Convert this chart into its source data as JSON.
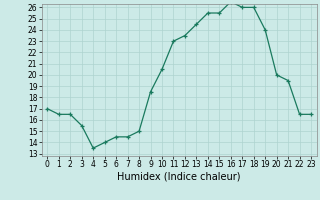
{
  "x": [
    0,
    1,
    2,
    3,
    4,
    5,
    6,
    7,
    8,
    9,
    10,
    11,
    12,
    13,
    14,
    15,
    16,
    17,
    18,
    19,
    20,
    21,
    22,
    23
  ],
  "y": [
    17,
    16.5,
    16.5,
    15.5,
    13.5,
    14,
    14.5,
    14.5,
    15,
    18.5,
    20.5,
    23,
    23.5,
    24.5,
    25.5,
    25.5,
    26.5,
    26,
    26,
    24,
    20,
    19.5,
    16.5,
    16.5
  ],
  "line_color": "#1a7a5e",
  "marker_color": "#1a7a5e",
  "bg_color": "#cceae7",
  "grid_color": "#aed4d0",
  "xlabel": "Humidex (Indice chaleur)",
  "ylim_min": 13,
  "ylim_max": 26,
  "xlim_min": -0.5,
  "xlim_max": 23.5,
  "yticks": [
    13,
    14,
    15,
    16,
    17,
    18,
    19,
    20,
    21,
    22,
    23,
    24,
    25,
    26
  ],
  "xticks": [
    0,
    1,
    2,
    3,
    4,
    5,
    6,
    7,
    8,
    9,
    10,
    11,
    12,
    13,
    14,
    15,
    16,
    17,
    18,
    19,
    20,
    21,
    22,
    23
  ],
  "tick_fontsize": 5.5,
  "label_fontsize": 7.0
}
